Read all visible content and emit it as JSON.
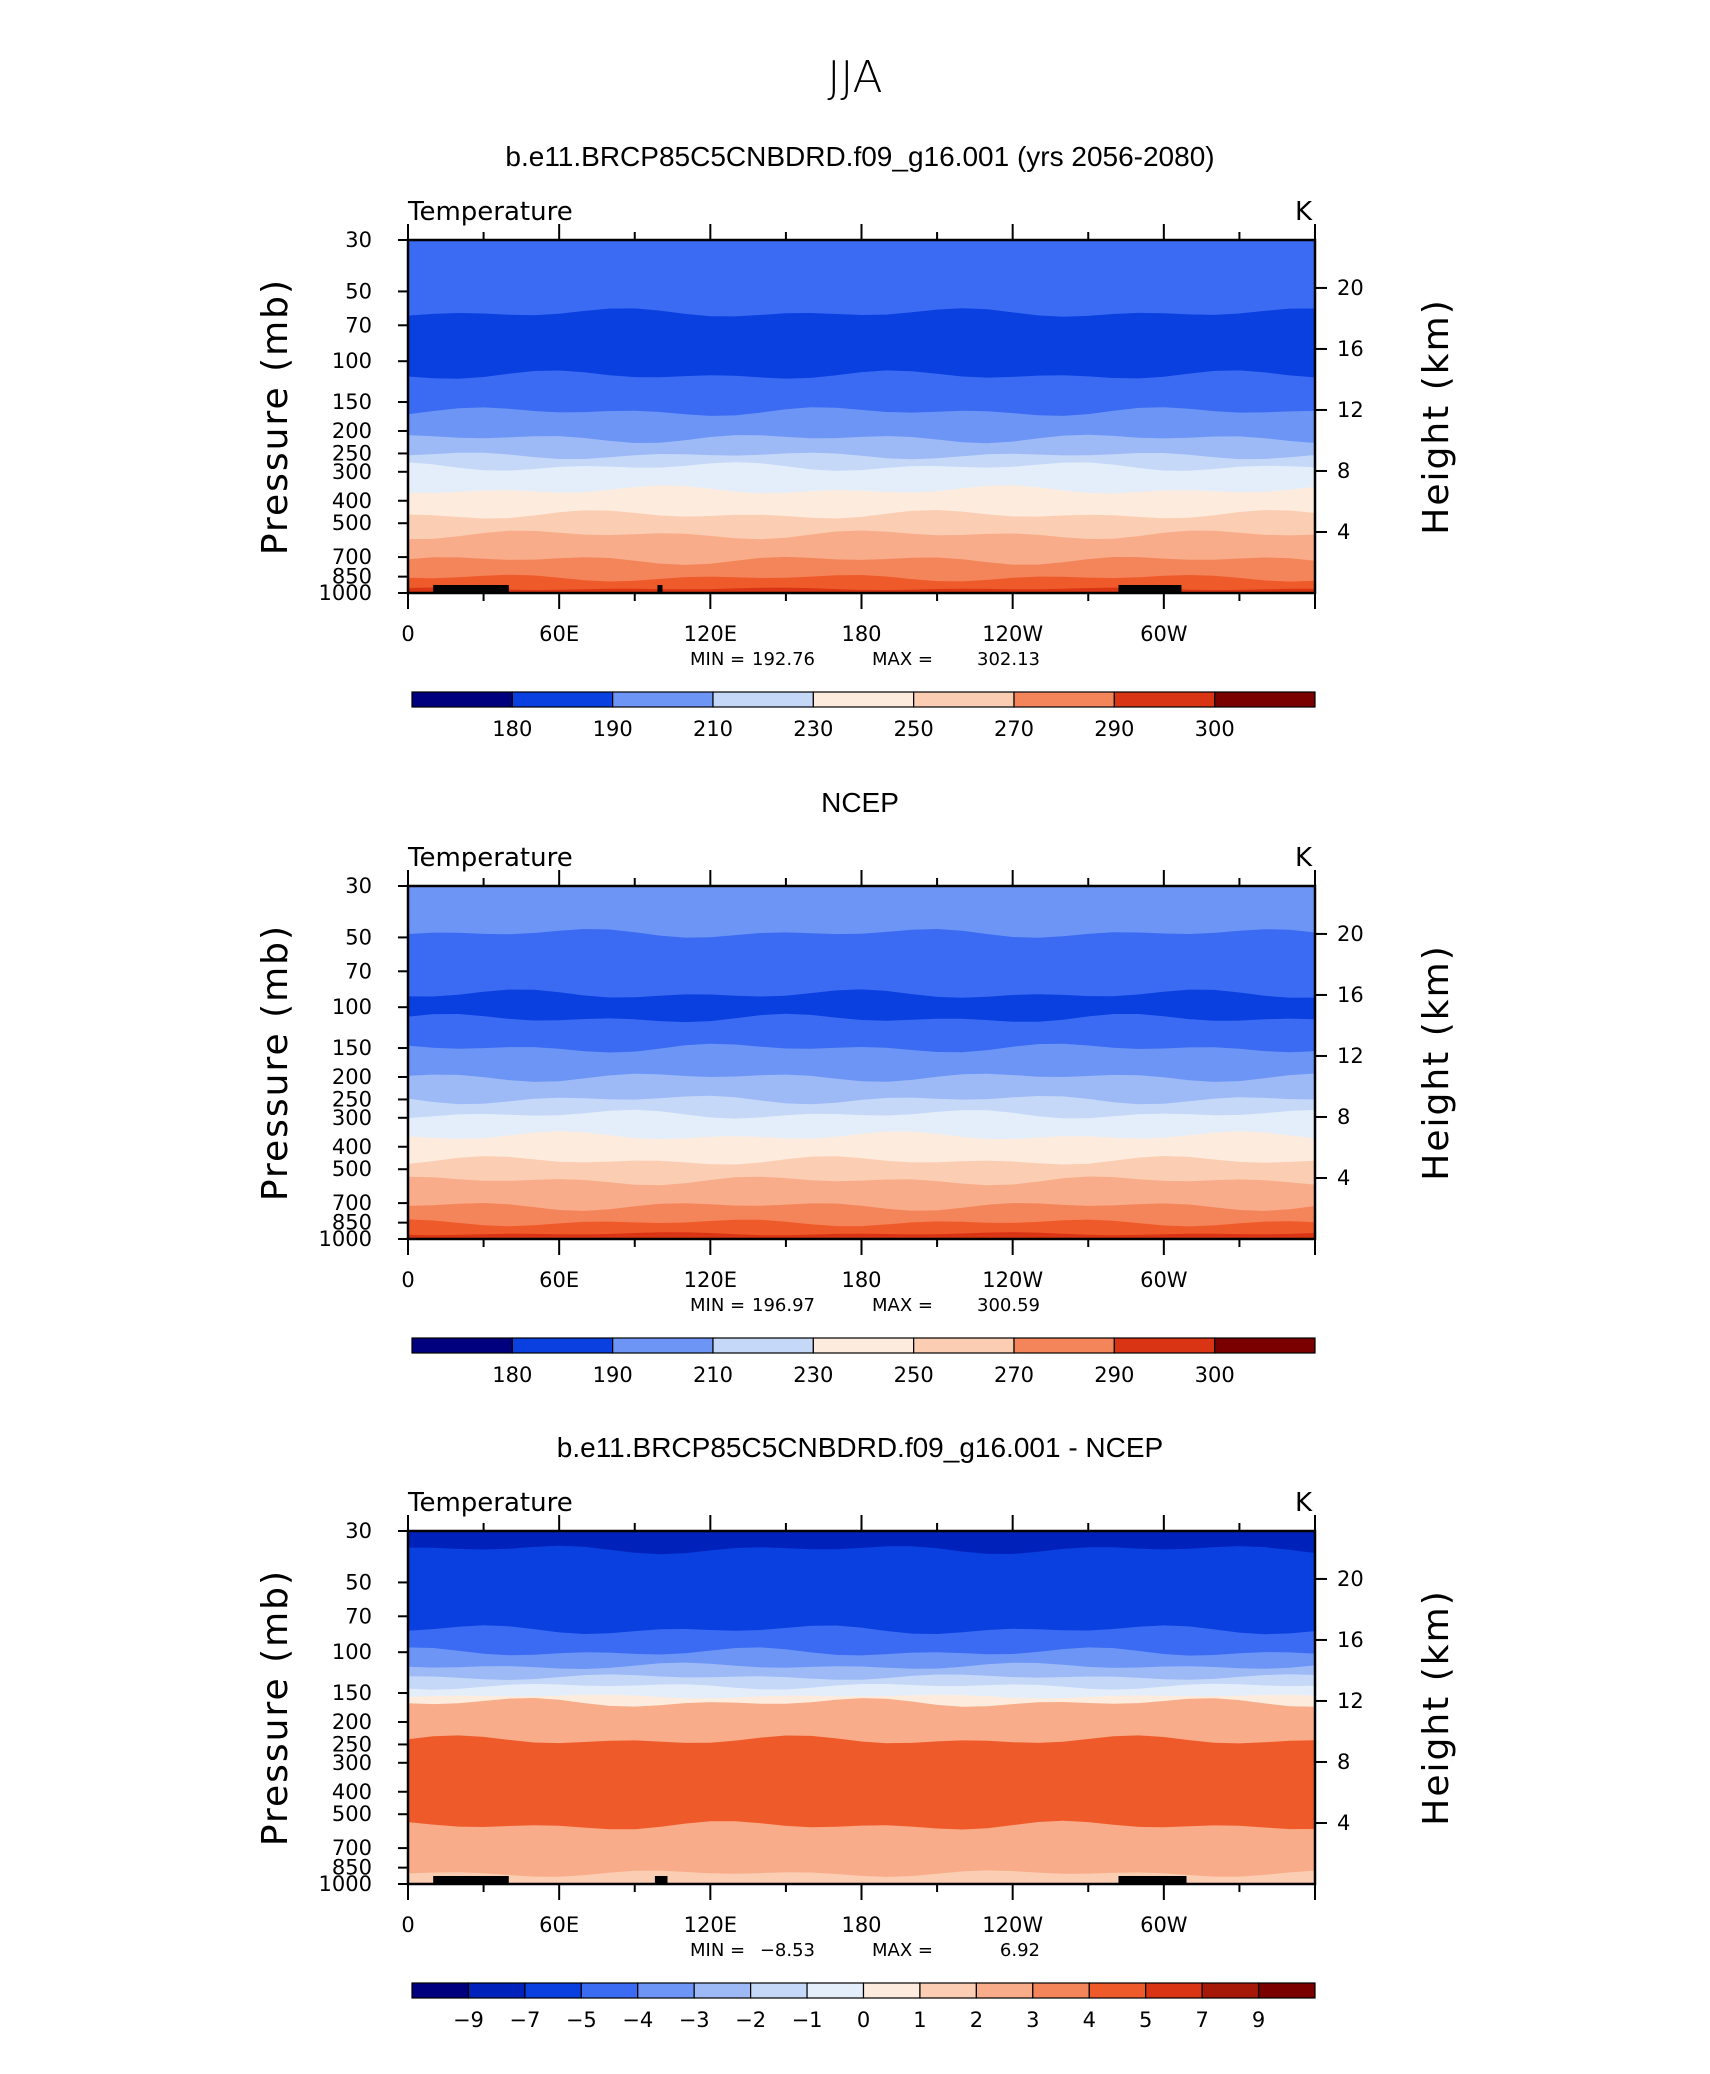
{
  "figure": {
    "title": "JJA"
  },
  "chart_data": [
    {
      "type": "heatmap",
      "title": "b.e11.BRCP85C5CNBDRD.f09_g16.001 (yrs 2056-2080)",
      "subtitle": "Temperature",
      "units": "K",
      "ylabel": "Pressure (mb)",
      "ylabel_right": "Height (km)",
      "x_ticks": [
        "0",
        "60E",
        "120E",
        "180",
        "120W",
        "60W"
      ],
      "y_ticks": [
        "30",
        "50",
        "70",
        "100",
        "150",
        "200",
        "250",
        "300",
        "400",
        "500",
        "700",
        "850",
        "1000"
      ],
      "y_ticks_right": [
        "20",
        "16",
        "12",
        "8",
        "4"
      ],
      "min_label": "MIN =",
      "min": "192.76",
      "max_label": "MAX =",
      "max": "302.13",
      "colorbar_labels": [
        "180",
        "190",
        "210",
        "230",
        "250",
        "270",
        "290",
        "300"
      ],
      "bands": [
        {
          "p_top": 30,
          "p_bot": 62,
          "level": 3
        },
        {
          "p_top": 62,
          "p_bot": 115,
          "level": 2
        },
        {
          "p_top": 115,
          "p_bot": 165,
          "level": 3
        },
        {
          "p_top": 165,
          "p_bot": 215,
          "level": 4
        },
        {
          "p_top": 215,
          "p_bot": 255,
          "level": 5
        },
        {
          "p_top": 255,
          "p_bot": 285,
          "level": 6
        },
        {
          "p_top": 285,
          "p_bot": 360,
          "level": 7
        },
        {
          "p_top": 360,
          "p_bot": 460,
          "level": 8
        },
        {
          "p_top": 460,
          "p_bot": 560,
          "level": 9
        },
        {
          "p_top": 560,
          "p_bot": 720,
          "level": 10
        },
        {
          "p_top": 720,
          "p_bot": 860,
          "level": 11
        },
        {
          "p_top": 860,
          "p_bot": 960,
          "level": 12
        },
        {
          "p_top": 960,
          "p_bot": 1000,
          "level": 13
        }
      ],
      "terrain": [
        {
          "lon_start": 10,
          "lon_end": 40
        },
        {
          "lon_start": 30,
          "lon_end": 37
        },
        {
          "lon_start": 99,
          "lon_end": 101
        },
        {
          "lon_start": 282,
          "lon_end": 307
        }
      ]
    },
    {
      "type": "heatmap",
      "title": "NCEP",
      "subtitle": "Temperature",
      "units": "K",
      "ylabel": "Pressure (mb)",
      "ylabel_right": "Height (km)",
      "x_ticks": [
        "0",
        "60E",
        "120E",
        "180",
        "120W",
        "60W"
      ],
      "y_ticks": [
        "30",
        "50",
        "70",
        "100",
        "150",
        "200",
        "250",
        "300",
        "400",
        "500",
        "700",
        "850",
        "1000"
      ],
      "y_ticks_right": [
        "20",
        "16",
        "12",
        "8",
        "4"
      ],
      "min_label": "MIN =",
      "min": "196.97",
      "max_label": "MAX =",
      "max": "300.59",
      "colorbar_labels": [
        "180",
        "190",
        "210",
        "230",
        "250",
        "270",
        "290",
        "300"
      ],
      "bands": [
        {
          "p_top": 30,
          "p_bot": 48,
          "level": 4
        },
        {
          "p_top": 48,
          "p_bot": 88,
          "level": 3
        },
        {
          "p_top": 88,
          "p_bot": 112,
          "level": 2
        },
        {
          "p_top": 112,
          "p_bot": 150,
          "level": 3
        },
        {
          "p_top": 150,
          "p_bot": 200,
          "level": 4
        },
        {
          "p_top": 200,
          "p_bot": 250,
          "level": 5
        },
        {
          "p_top": 250,
          "p_bot": 290,
          "level": 6
        },
        {
          "p_top": 290,
          "p_bot": 360,
          "level": 7
        },
        {
          "p_top": 360,
          "p_bot": 460,
          "level": 8
        },
        {
          "p_top": 460,
          "p_bot": 560,
          "level": 9
        },
        {
          "p_top": 560,
          "p_bot": 720,
          "level": 10
        },
        {
          "p_top": 720,
          "p_bot": 850,
          "level": 11
        },
        {
          "p_top": 850,
          "p_bot": 950,
          "level": 12
        },
        {
          "p_top": 950,
          "p_bot": 1000,
          "level": 13
        }
      ],
      "terrain": []
    },
    {
      "type": "heatmap",
      "title": "b.e11.BRCP85C5CNBDRD.f09_g16.001 - NCEP",
      "subtitle": "Temperature",
      "units": "K",
      "ylabel": "Pressure (mb)",
      "ylabel_right": "Height (km)",
      "x_ticks": [
        "0",
        "60E",
        "120E",
        "180",
        "120W",
        "60W"
      ],
      "y_ticks": [
        "30",
        "50",
        "70",
        "100",
        "150",
        "200",
        "250",
        "300",
        "400",
        "500",
        "700",
        "850",
        "1000"
      ],
      "y_ticks_right": [
        "20",
        "16",
        "12",
        "8",
        "4"
      ],
      "min_label": "MIN =",
      "min": "−8.53",
      "max_label": "MAX =",
      "max": "6.92",
      "colorbar_labels": [
        "−9",
        "−7",
        "−5",
        "−4",
        "−3",
        "−2",
        "−1",
        "0",
        "1",
        "2",
        "3",
        "4",
        "5",
        "7",
        "9"
      ],
      "bands": [
        {
          "p_top": 30,
          "p_bot": 36,
          "level": 1
        },
        {
          "p_top": 36,
          "p_bot": 80,
          "level": 2
        },
        {
          "p_top": 80,
          "p_bot": 100,
          "level": 3
        },
        {
          "p_top": 100,
          "p_bot": 115,
          "level": 4
        },
        {
          "p_top": 115,
          "p_bot": 128,
          "level": 5
        },
        {
          "p_top": 128,
          "p_bot": 140,
          "level": 6
        },
        {
          "p_top": 140,
          "p_bot": 155,
          "level": 7
        },
        {
          "p_top": 155,
          "p_bot": 165,
          "level": 8
        },
        {
          "p_top": 165,
          "p_bot": 240,
          "level": 10
        },
        {
          "p_top": 240,
          "p_bot": 560,
          "level": 12
        },
        {
          "p_top": 560,
          "p_bot": 900,
          "level": 10
        },
        {
          "p_top": 900,
          "p_bot": 1000,
          "level": 9
        }
      ],
      "terrain": [
        {
          "lon_start": 10,
          "lon_end": 40
        },
        {
          "lon_start": 30,
          "lon_end": 37
        },
        {
          "lon_start": 98,
          "lon_end": 103
        },
        {
          "lon_start": 282,
          "lon_end": 309
        }
      ]
    }
  ],
  "colors": {
    "palette": [
      "#00007f",
      "#0022bb",
      "#0a3fe0",
      "#3a6bf2",
      "#6d95f5",
      "#9dbaf7",
      "#c6d8f8",
      "#e4eefa",
      "#fdecdd",
      "#fbcdb3",
      "#f8ac89",
      "#f4855b",
      "#ef5a2a",
      "#d93515",
      "#a61808",
      "#7a0000"
    ],
    "terrain": "#000000"
  }
}
